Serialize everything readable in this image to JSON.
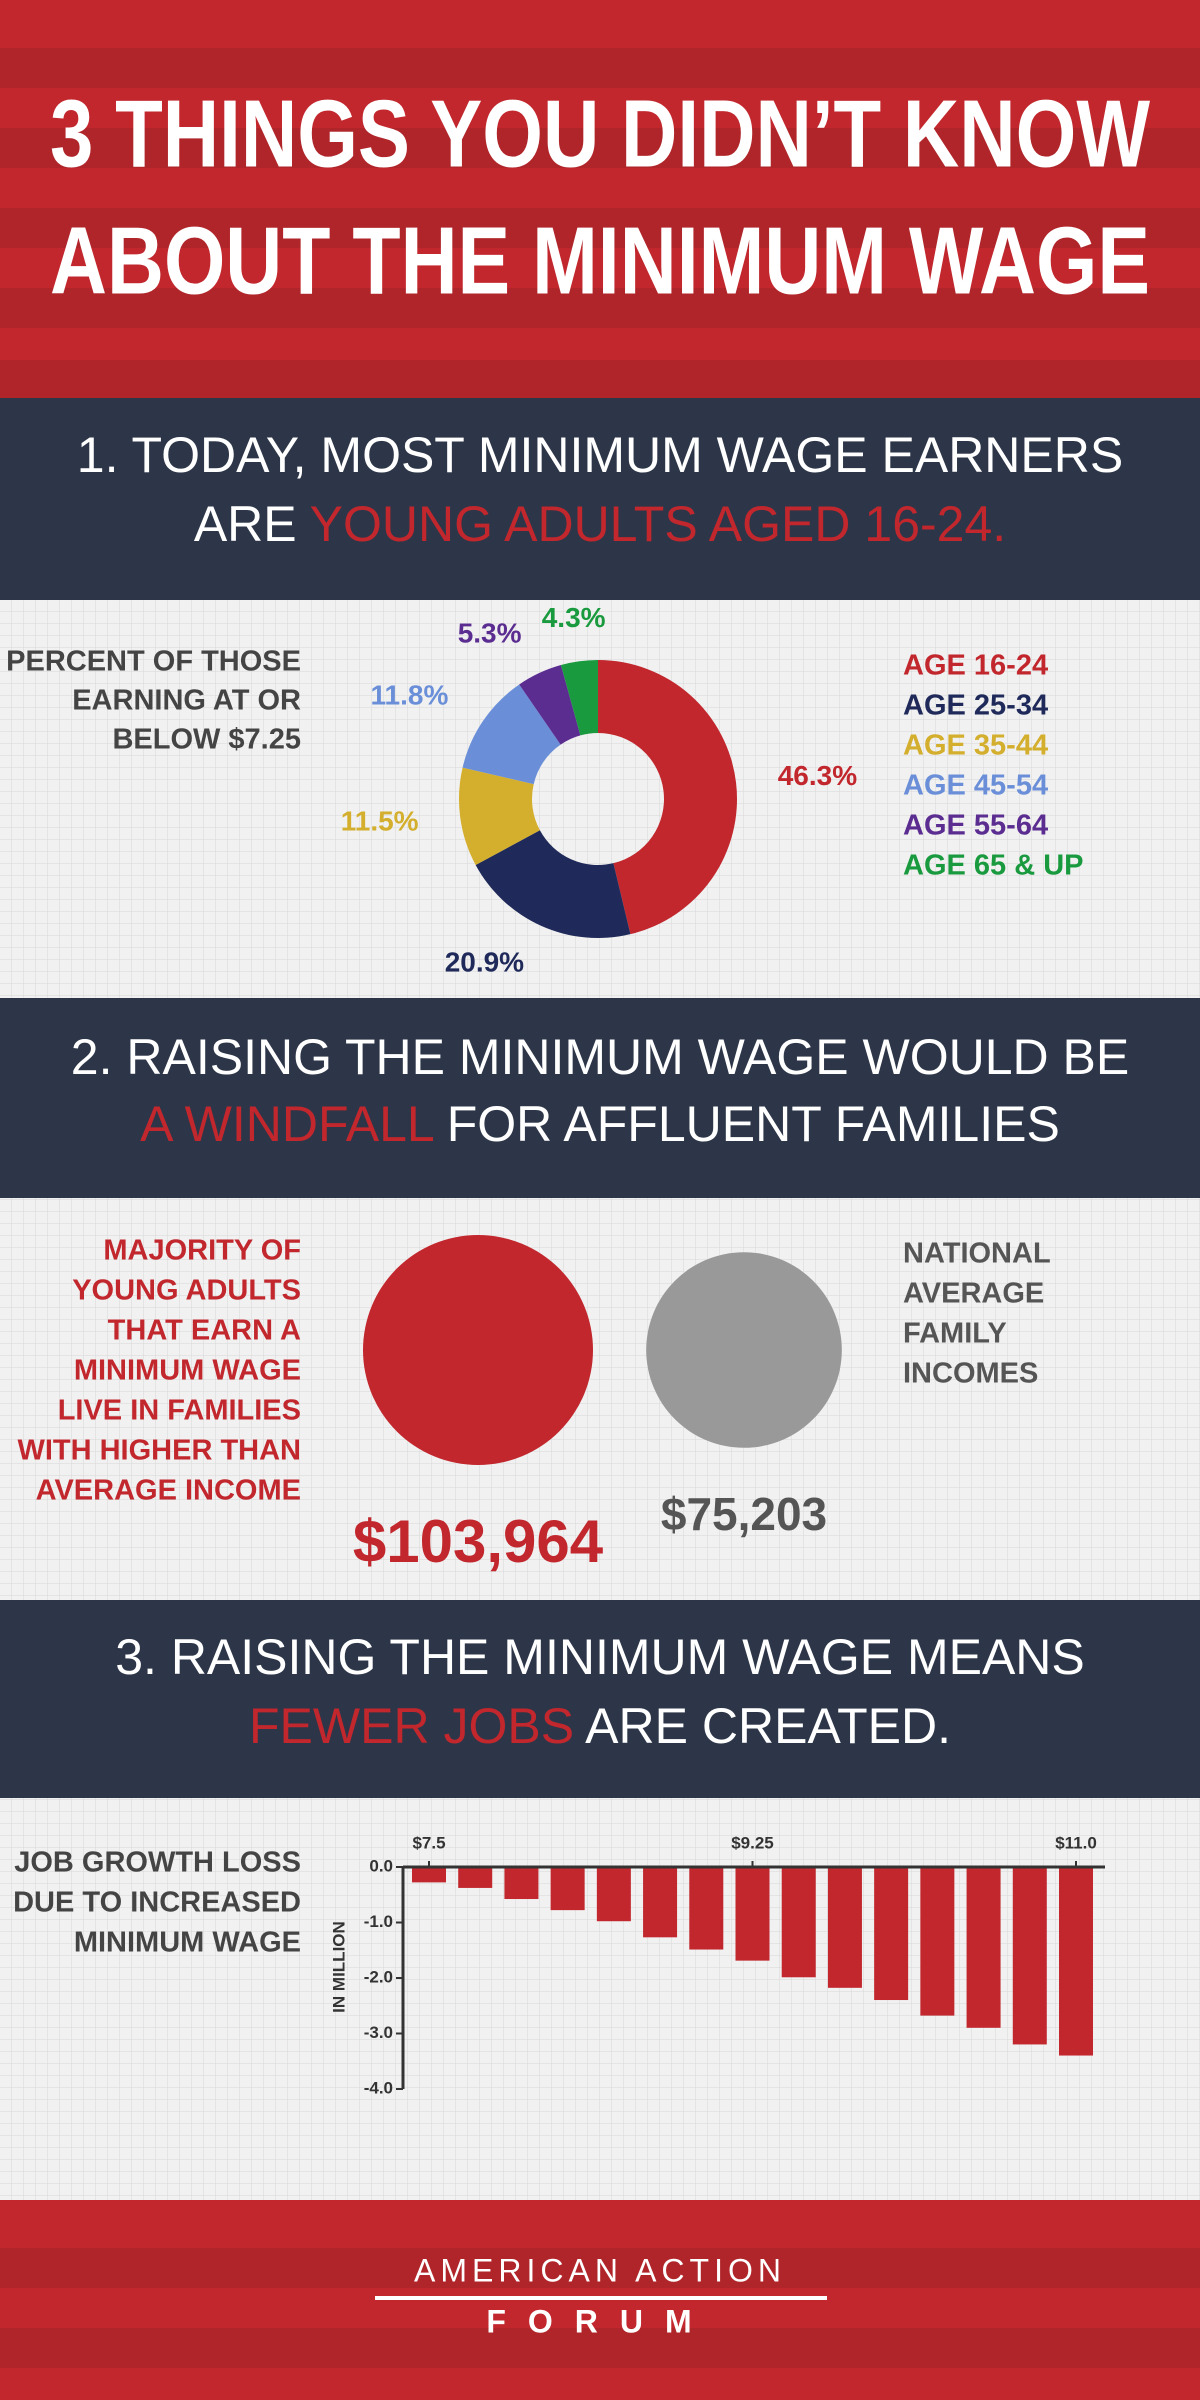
{
  "header": {
    "title": [
      "3 THINGS YOU DIDN’T KNOW",
      "ABOUT THE MINIMUM WAGE"
    ]
  },
  "sections": [
    {
      "heading": [
        [
          {
            "text": "1. TODAY, MOST MINIMUM WAGE EARNERS"
          }
        ],
        [
          {
            "text": "ARE "
          },
          {
            "text": "YOUNG ADULTS AGED 16-24.",
            "color": "#c1272d"
          }
        ]
      ]
    },
    {
      "heading": [
        [
          {
            "text": "2. RAISING THE MINIMUM WAGE WOULD BE"
          }
        ],
        [
          {
            "text": "A WINDFALL",
            "color": "#c1272d"
          },
          {
            "text": " FOR AFFLUENT FAMILIES"
          }
        ]
      ]
    },
    {
      "heading": [
        [
          {
            "text": "3. RAISING THE MINIMUM WAGE MEANS"
          }
        ],
        [
          {
            "text": "FEWER JOBS",
            "color": "#c1272d"
          },
          {
            "text": " ARE CREATED."
          }
        ]
      ]
    }
  ],
  "chart_data": [
    {
      "type": "donut",
      "title": [
        "PERCENT OF THOSE",
        "EARNING AT OR",
        "BELOW $7.25"
      ],
      "categories": [
        "AGE 16-24",
        "AGE 25-34",
        "AGE 35-44",
        "AGE 45-54",
        "AGE 55-64",
        "AGE 65 & UP"
      ],
      "values": [
        46.3,
        20.9,
        11.5,
        11.8,
        5.3,
        4.3
      ],
      "value_labels": [
        "46.3%",
        "20.9%",
        "11.5%",
        "11.8%",
        "5.3%",
        "4.3%"
      ],
      "colors": [
        "#c1272d",
        "#1f2a5a",
        "#d4ae2d",
        "#6a8fd8",
        "#5b2d91",
        "#1a9a3f"
      ]
    },
    {
      "type": "bubble",
      "annotations": [
        [
          "MAJORITY OF",
          "YOUNG ADULTS",
          "THAT EARN A",
          "MINIMUM WAGE",
          "LIVE IN FAMILIES",
          "WITH HIGHER THAN",
          "AVERAGE INCOME"
        ],
        [
          "NATIONAL",
          "AVERAGE",
          "FAMILY",
          "INCOMES"
        ]
      ],
      "values": [
        103964,
        75203
      ],
      "value_labels": [
        "$103,964",
        "$75,203"
      ],
      "colors": [
        "#c1272d",
        "#999999"
      ]
    },
    {
      "type": "bar",
      "title": [
        "JOB GROWTH LOSS",
        "DUE TO INCREASED",
        "MINIMUM WAGE"
      ],
      "y_label": "IN MILLION",
      "x": [
        7.5,
        7.75,
        8.0,
        8.25,
        8.5,
        8.75,
        9.0,
        9.25,
        9.5,
        9.75,
        10.0,
        10.25,
        10.5,
        10.75,
        11.0
      ],
      "values": [
        -0.25,
        -0.35,
        -0.55,
        -0.75,
        -0.95,
        -1.24,
        -1.46,
        -1.66,
        -1.96,
        -2.15,
        -2.37,
        -2.65,
        -2.87,
        -3.17,
        -3.37
      ],
      "color": "#c1272d",
      "xlim": [
        7.5,
        11.0
      ],
      "xticks": [
        {
          "value": 7.5,
          "label": "$7.5"
        },
        {
          "value": 9.25,
          "label": "$9.25"
        },
        {
          "value": 11.0,
          "label": "$11.0"
        }
      ],
      "ylim": [
        -4,
        0
      ],
      "yticks": [
        {
          "value": 0,
          "label": "0.0"
        },
        {
          "value": -1,
          "label": "-1.0"
        },
        {
          "value": -2,
          "label": "-2.0"
        },
        {
          "value": -3,
          "label": "-3.0"
        },
        {
          "value": -4,
          "label": "-4.0"
        }
      ]
    }
  ],
  "footer": {
    "lines": [
      "AMERICAN ACTION",
      "FORUM"
    ]
  }
}
